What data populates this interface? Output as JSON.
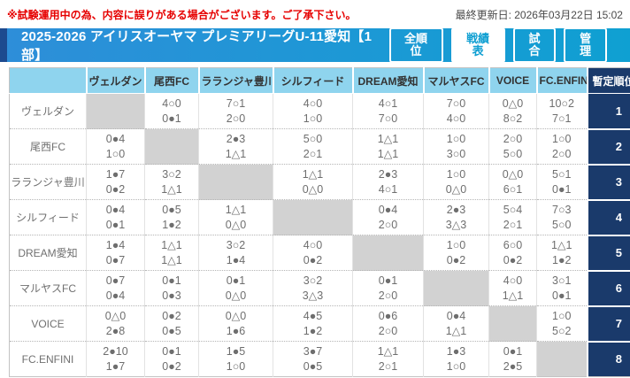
{
  "notice": "※試験運用中の為、内容に誤りがある場合がございます。ご了承下さい。",
  "last_updated": "最終更新日: 2026年03月22日 15:02",
  "title_bar": {
    "title": "2025-2026 アイリスオーヤマ プレミアリーグU-11愛知【1部】",
    "tabs": [
      {
        "label": "全順位",
        "active": false
      },
      {
        "label": "戦績表",
        "active": true
      },
      {
        "label": "試合",
        "active": false
      },
      {
        "label": "管理",
        "active": false
      }
    ]
  },
  "colors": {
    "notice_red": "#e60000",
    "bar_blue": "#2e8ed9",
    "bar_cyan": "#0fa0d2",
    "stripe_navy": "#1d4a8f",
    "header_sky": "#8fd4ee",
    "rank_navy": "#1a3a6b",
    "diagonal_gray": "#d2d2d2"
  },
  "legend": {
    "win_mark": "○",
    "loss_mark": "●",
    "draw_mark": "△"
  },
  "matrix": {
    "rank_header": "暫定順位",
    "columns": [
      "ヴェルダン",
      "尾西FC",
      "ラランジャ豊川",
      "シルフィード",
      "DREAM愛知",
      "マルヤスFC",
      "VOICE",
      "FC.ENFINI"
    ],
    "rows": [
      {
        "team": "ヴェルダン",
        "rank": "1",
        "cells": [
          null,
          [
            "4○0",
            "0●1"
          ],
          [
            "7○1",
            "2○0"
          ],
          [
            "4○0",
            "1○0"
          ],
          [
            "4○1",
            "7○0"
          ],
          [
            "7○0",
            "4○0"
          ],
          [
            "0△0",
            "8○2"
          ],
          [
            "10○2",
            "7○1"
          ]
        ]
      },
      {
        "team": "尾西FC",
        "rank": "2",
        "cells": [
          [
            "0●4",
            "1○0"
          ],
          null,
          [
            "2●3",
            "1△1"
          ],
          [
            "5○0",
            "2○1"
          ],
          [
            "1△1",
            "1△1"
          ],
          [
            "1○0",
            "3○0"
          ],
          [
            "2○0",
            "5○0"
          ],
          [
            "1○0",
            "2○0"
          ]
        ]
      },
      {
        "team": "ラランジャ豊川",
        "rank": "3",
        "cells": [
          [
            "1●7",
            "0●2"
          ],
          [
            "3○2",
            "1△1"
          ],
          null,
          [
            "1△1",
            "0△0"
          ],
          [
            "2●3",
            "4○1"
          ],
          [
            "1○0",
            "0△0"
          ],
          [
            "0△0",
            "6○1"
          ],
          [
            "5○1",
            "0●1"
          ]
        ]
      },
      {
        "team": "シルフィード",
        "rank": "4",
        "cells": [
          [
            "0●4",
            "0●1"
          ],
          [
            "0●5",
            "1●2"
          ],
          [
            "1△1",
            "0△0"
          ],
          null,
          [
            "0●4",
            "2○0"
          ],
          [
            "2●3",
            "3△3"
          ],
          [
            "5○4",
            "2○1"
          ],
          [
            "7○3",
            "5○0"
          ]
        ]
      },
      {
        "team": "DREAM愛知",
        "rank": "5",
        "cells": [
          [
            "1●4",
            "0●7"
          ],
          [
            "1△1",
            "1△1"
          ],
          [
            "3○2",
            "1●4"
          ],
          [
            "4○0",
            "0●2"
          ],
          null,
          [
            "1○0",
            "0●2"
          ],
          [
            "6○0",
            "0●2"
          ],
          [
            "1△1",
            "1●2"
          ]
        ]
      },
      {
        "team": "マルヤスFC",
        "rank": "6",
        "cells": [
          [
            "0●7",
            "0●4"
          ],
          [
            "0●1",
            "0●3"
          ],
          [
            "0●1",
            "0△0"
          ],
          [
            "3○2",
            "3△3"
          ],
          [
            "0●1",
            "2○0"
          ],
          null,
          [
            "4○0",
            "1△1"
          ],
          [
            "3○1",
            "0●1"
          ]
        ]
      },
      {
        "team": "VOICE",
        "rank": "7",
        "cells": [
          [
            "0△0",
            "2●8"
          ],
          [
            "0●2",
            "0●5"
          ],
          [
            "0△0",
            "1●6"
          ],
          [
            "4●5",
            "1●2"
          ],
          [
            "0●6",
            "2○0"
          ],
          [
            "0●4",
            "1△1"
          ],
          null,
          [
            "1○0",
            "5○2"
          ]
        ]
      },
      {
        "team": "FC.ENFINI",
        "rank": "8",
        "cells": [
          [
            "2●10",
            "1●7"
          ],
          [
            "0●1",
            "0●2"
          ],
          [
            "1●5",
            "1○0"
          ],
          [
            "3●7",
            "0●5"
          ],
          [
            "1△1",
            "2○1"
          ],
          [
            "1●3",
            "1○0"
          ],
          [
            "0●1",
            "2●5"
          ],
          null
        ]
      }
    ]
  }
}
